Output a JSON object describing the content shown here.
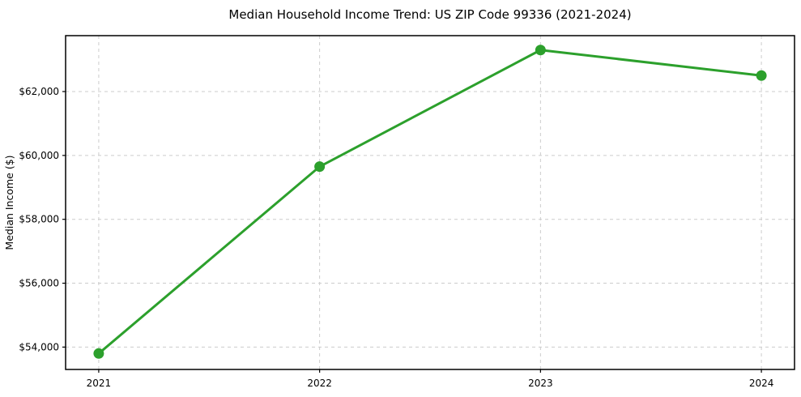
{
  "chart_data": {
    "type": "line",
    "title": "Median Household Income Trend: US ZIP Code 99336 (2021-2024)",
    "xlabel": "",
    "ylabel": "Median Income ($)",
    "categories": [
      2021,
      2022,
      2023,
      2024
    ],
    "x_tick_labels": [
      "2021",
      "2022",
      "2023",
      "2024"
    ],
    "series_name": "Median Household Income",
    "values": [
      53800,
      59650,
      63300,
      62500
    ],
    "y_ticks": [
      {
        "value": 54000,
        "label": "$54,000"
      },
      {
        "value": 56000,
        "label": "$56,000"
      },
      {
        "value": 58000,
        "label": "$58,000"
      },
      {
        "value": 60000,
        "label": "$60,000"
      },
      {
        "value": 62000,
        "label": "$62,000"
      }
    ],
    "xlim": [
      2020.85,
      2024.15
    ],
    "ylim": [
      53300,
      63750
    ],
    "grid": true,
    "grid_style": "dashed",
    "legend_position": "none",
    "line_color": "#2ca02c",
    "marker": "circle",
    "marker_radius": 6.5,
    "grid_color": "#cccccc",
    "background_color": "#ffffff",
    "axis_color": "#000000"
  }
}
